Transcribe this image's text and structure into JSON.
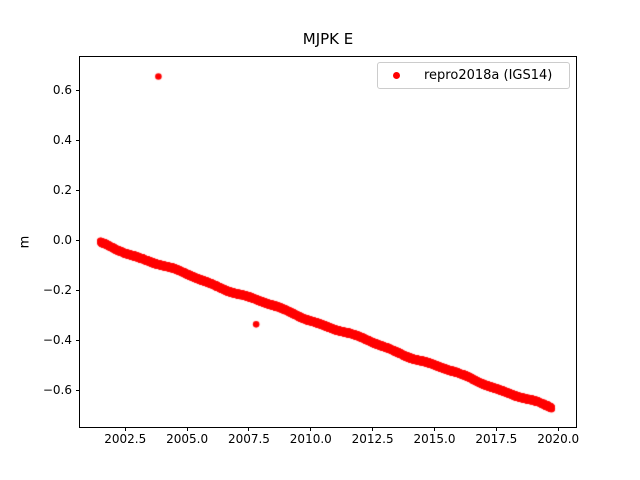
{
  "figure": {
    "background": "#ffffff"
  },
  "chart_data": {
    "type": "scatter",
    "title": "MJPK E",
    "xlabel": "",
    "ylabel": "m",
    "xlim": [
      2000.67,
      2020.72
    ],
    "ylim": [
      -0.744,
      0.734
    ],
    "xticks": [
      2002.5,
      2005.0,
      2007.5,
      2010.0,
      2012.5,
      2015.0,
      2017.5,
      2020.0
    ],
    "xtick_labels": [
      "2002.5",
      "2005.0",
      "2007.5",
      "2010.0",
      "2012.5",
      "2015.0",
      "2017.5",
      "2020.0"
    ],
    "yticks": [
      0.6,
      0.4,
      0.2,
      0.0,
      -0.2,
      -0.4,
      -0.6
    ],
    "ytick_labels": [
      "0.6",
      "0.4",
      "0.2",
      "0.0",
      "−0.2",
      "−0.4",
      "−0.6"
    ],
    "grid": false,
    "legend": {
      "position": "upper right",
      "entries": [
        {
          "label": "repro2018a (IGS14)",
          "marker": "dot",
          "color": "#ff0000"
        }
      ]
    },
    "series": [
      {
        "name": "repro2018a (IGS14)",
        "color": "#ff0000",
        "marker": ".",
        "marker_radius_px": 3.3,
        "trend": {
          "x_start": 2001.45,
          "y_start": -0.005,
          "x_end": 2019.7,
          "y_end": -0.665,
          "slope_m_per_yr": -0.0362
        },
        "trend_samples": [
          {
            "x": 2001.45,
            "y": -0.005
          },
          {
            "x": 2002.5,
            "y": -0.043
          },
          {
            "x": 2005.0,
            "y": -0.134
          },
          {
            "x": 2007.5,
            "y": -0.224
          },
          {
            "x": 2010.0,
            "y": -0.315
          },
          {
            "x": 2012.5,
            "y": -0.405
          },
          {
            "x": 2015.0,
            "y": -0.496
          },
          {
            "x": 2017.5,
            "y": -0.586
          },
          {
            "x": 2019.7,
            "y": -0.665
          }
        ],
        "points_per_year": 365,
        "noise_amplitude_m": 0.006,
        "outliers": [
          {
            "x": 2003.8,
            "y": 0.66
          },
          {
            "x": 2007.75,
            "y": -0.33
          }
        ]
      }
    ],
    "axes_style": {
      "spine_color": "#000000",
      "tick_color": "#000000",
      "tick_label_color": "#000000"
    }
  }
}
